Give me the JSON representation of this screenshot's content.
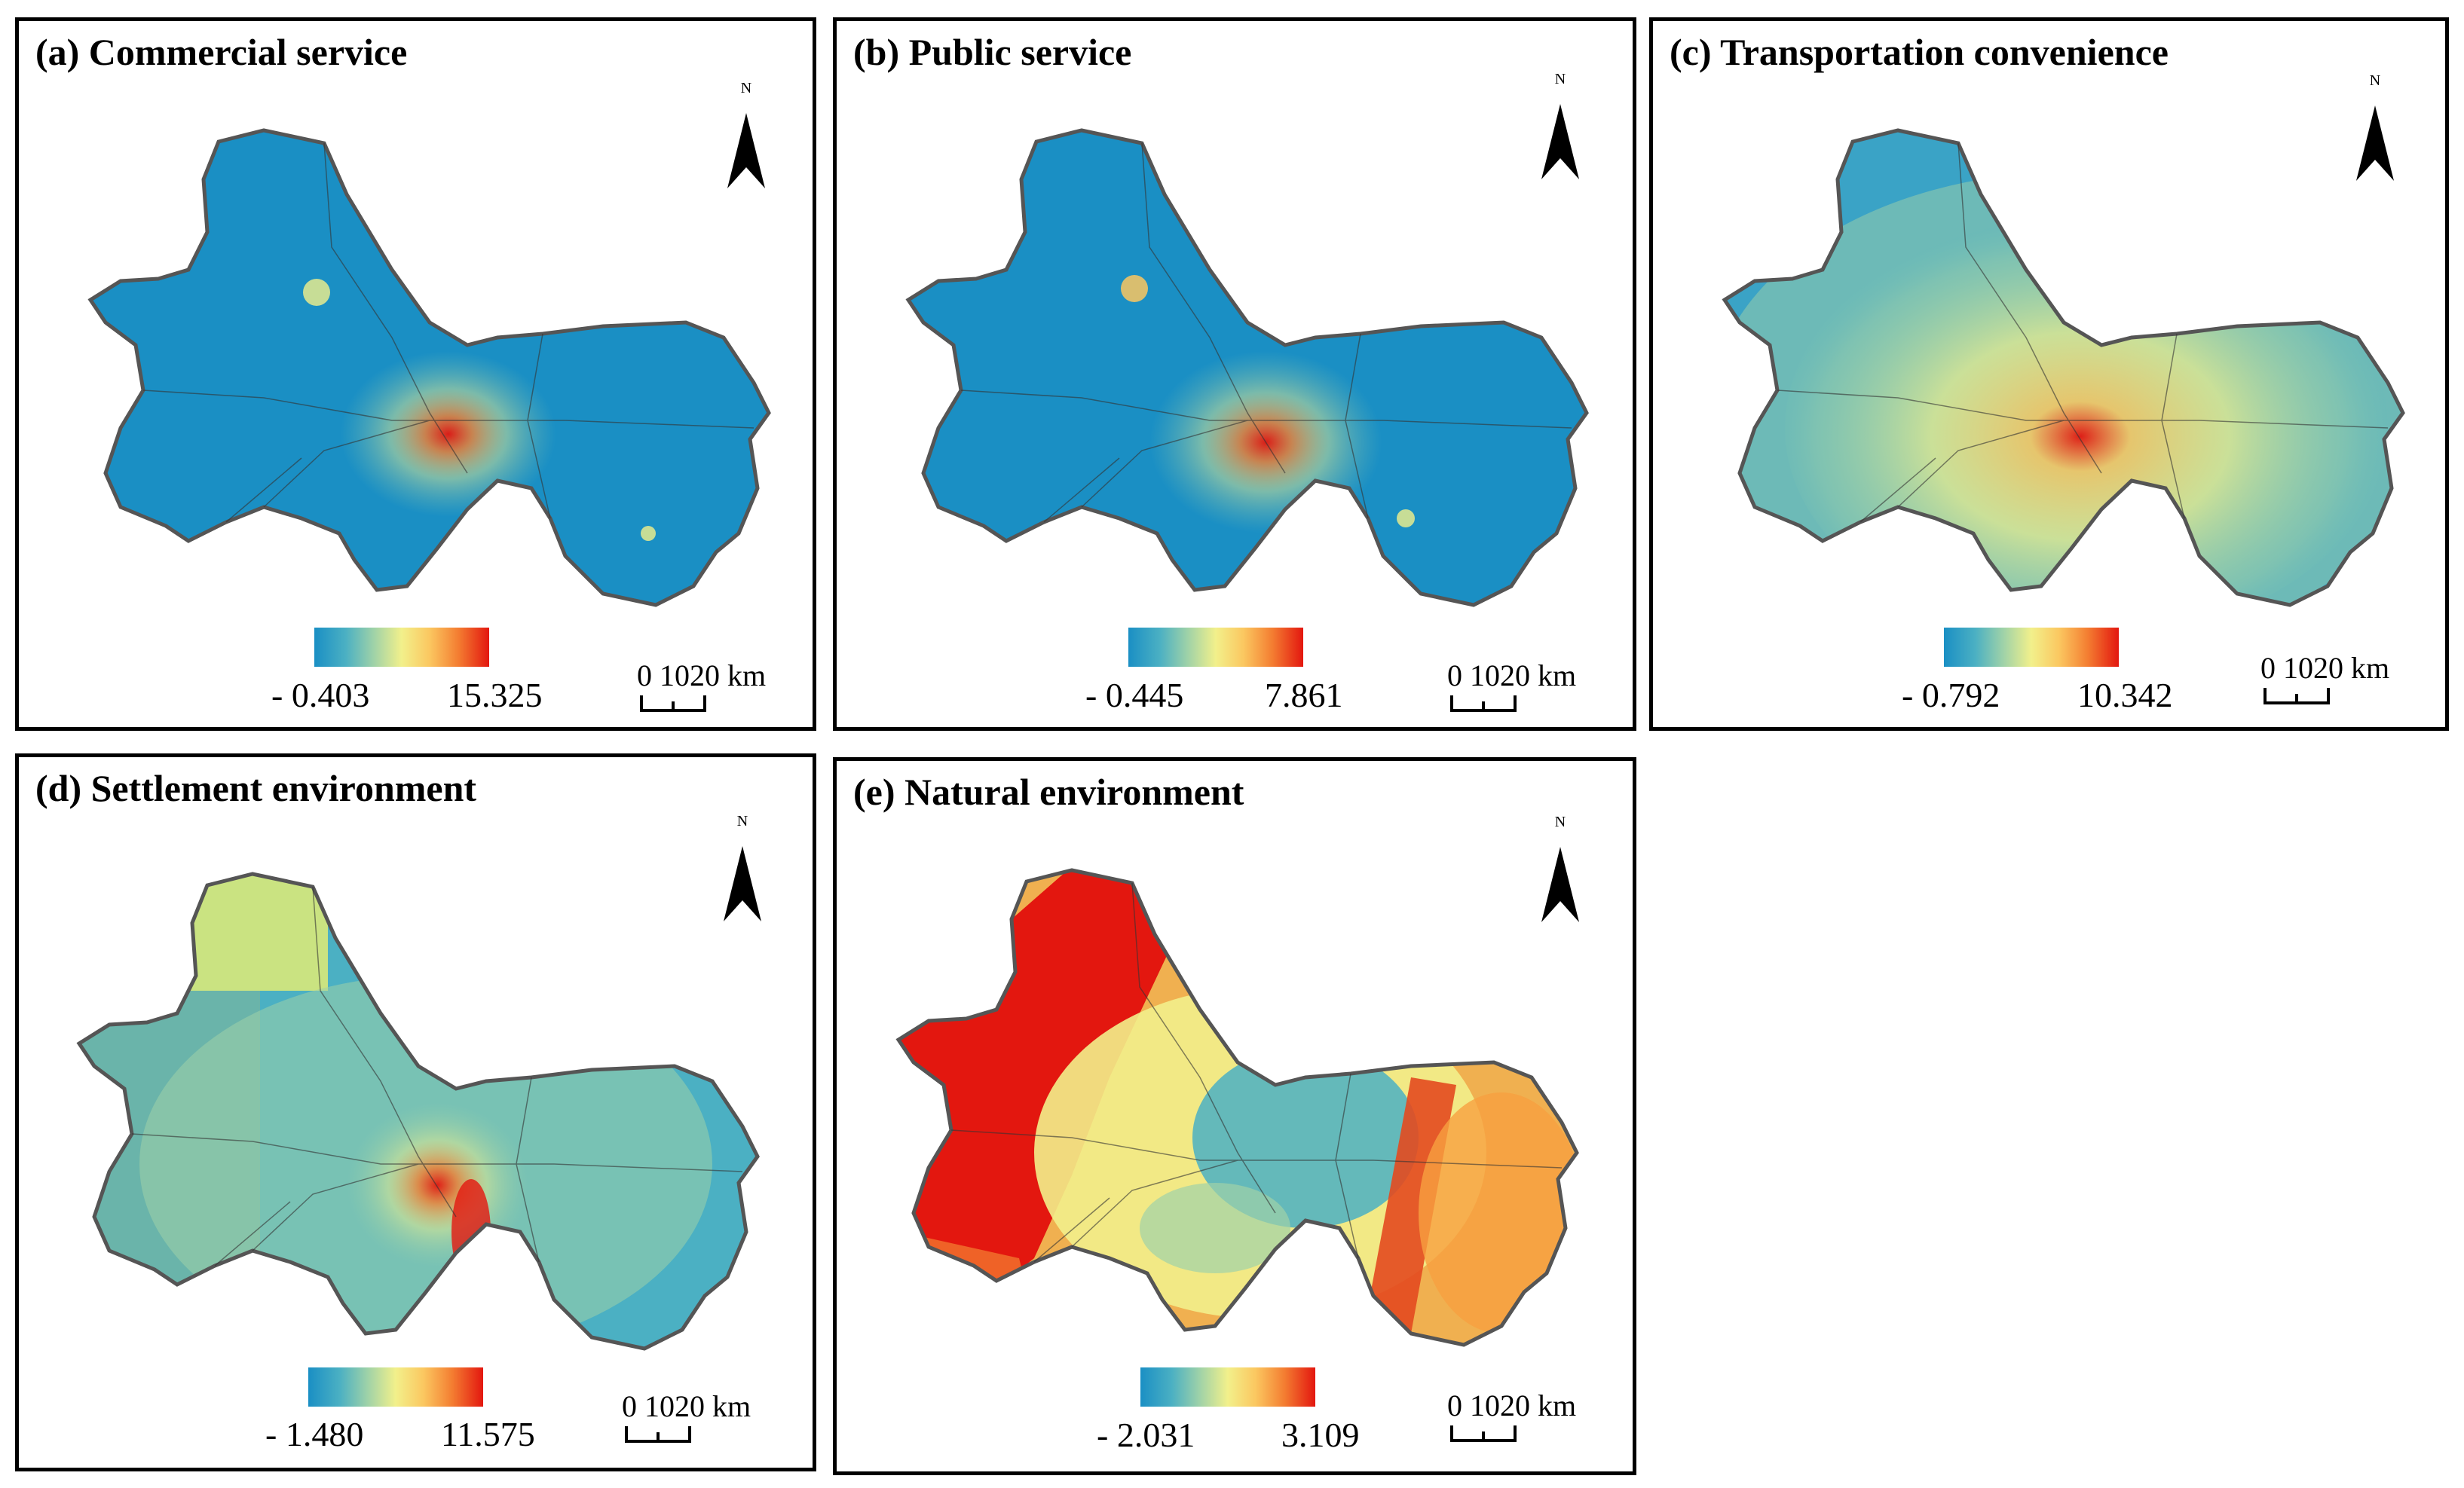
{
  "figure": {
    "panels": [
      {
        "id": "a",
        "title": "(a) Commercial service",
        "north_label": "N",
        "legend": {
          "min": "- 0.403",
          "max": "15.325"
        },
        "scale": {
          "label": "0 1020 km"
        }
      },
      {
        "id": "b",
        "title": "(b) Public service",
        "north_label": "N",
        "legend": {
          "min": "- 0.445",
          "max": "7.861"
        },
        "scale": {
          "label": "0 1020 km"
        }
      },
      {
        "id": "c",
        "title": "(c) Transportation convenience",
        "north_label": "N",
        "legend": {
          "min": "- 0.792",
          "max": "10.342"
        },
        "scale": {
          "label": "0 1020 km"
        }
      },
      {
        "id": "d",
        "title": "(d) Settlement environment",
        "north_label": "N",
        "legend": {
          "min": "- 1.480",
          "max": "11.575"
        },
        "scale": {
          "label": "0 1020 km"
        }
      },
      {
        "id": "e",
        "title": "(e) Natural environment",
        "north_label": "N",
        "legend": {
          "min": "- 2.031",
          "max": "3.109"
        },
        "scale": {
          "label": "0 1020 km"
        }
      }
    ],
    "colors": {
      "low": "#1a8fc4",
      "mid": "#f2f08b",
      "high": "#e3170f",
      "border": "#555555"
    }
  }
}
